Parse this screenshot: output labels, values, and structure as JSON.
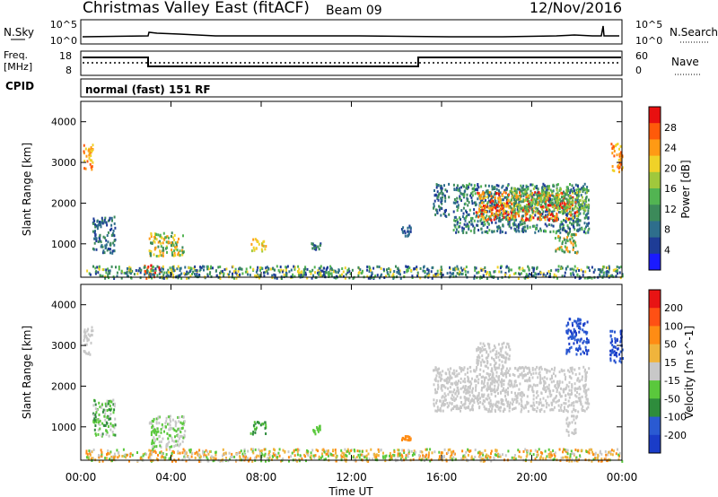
{
  "header": {
    "title": "Christmas Valley East (fitACF)",
    "beam": "Beam 09",
    "date": "12/Nov/2016"
  },
  "top_panels": {
    "nsky_label": "N.Sky",
    "nsky_ticks": [
      "10^5",
      "10^0"
    ],
    "nsearch_label": "N.Search",
    "nsearch_ticks": [
      "10^5",
      "10^0"
    ],
    "freq_label_1": "Freq.",
    "freq_label_2": "[MHz]",
    "freq_ticks": [
      "18",
      "8"
    ],
    "nave_label": "Nave",
    "nave_ticks": [
      "60",
      "0"
    ],
    "cpid_label": "CPID",
    "cpid_text": "normal (fast) 151 RF"
  },
  "chart_data": [
    {
      "type": "heatmap",
      "title": "",
      "xlabel": "",
      "ylabel": "Slant Range [km]",
      "colorbar_label": "Power [dB]",
      "x_range_hours": [
        0,
        24
      ],
      "y_range_km": [
        180,
        4500
      ],
      "yticks": [
        "1000",
        "2000",
        "3000",
        "4000"
      ],
      "colorbar_ticks": [
        "4",
        "8",
        "12",
        "16",
        "20",
        "24",
        "28"
      ],
      "colors": [
        "#1a1aff",
        "#1e3c96",
        "#2e6e8c",
        "#3c8a5a",
        "#52b452",
        "#a0c83c",
        "#f0d228",
        "#ff9a14",
        "#ff5a0a",
        "#e81010"
      ],
      "scatter_regions": [
        {
          "t": [
            0.1,
            0.5
          ],
          "r": [
            2800,
            3500
          ],
          "colors": [
            "#ff9a14",
            "#f0d228",
            "#ff5a0a"
          ]
        },
        {
          "t": [
            0.5,
            1.5
          ],
          "r": [
            800,
            1700
          ],
          "colors": [
            "#1e3c96",
            "#2e6e8c",
            "#3c8a5a"
          ]
        },
        {
          "t": [
            2.8,
            3.5
          ],
          "r": [
            180,
            500
          ],
          "colors": [
            "#e81010",
            "#ff5a0a"
          ]
        },
        {
          "t": [
            3.0,
            4.6
          ],
          "r": [
            700,
            1300
          ],
          "colors": [
            "#52b452",
            "#f0d228",
            "#ff9a14",
            "#3c8a5a"
          ]
        },
        {
          "t": [
            7.5,
            8.2
          ],
          "r": [
            850,
            1150
          ],
          "colors": [
            "#a0c83c",
            "#f0d228",
            "#ff9a14"
          ]
        },
        {
          "t": [
            10.2,
            10.6
          ],
          "r": [
            850,
            1050
          ],
          "colors": [
            "#3c8a5a",
            "#1e3c96"
          ]
        },
        {
          "t": [
            14.2,
            14.6
          ],
          "r": [
            1200,
            1500
          ],
          "colors": [
            "#1e3c96",
            "#2e6e8c"
          ]
        },
        {
          "t": [
            15.6,
            16.3
          ],
          "r": [
            1700,
            2500
          ],
          "colors": [
            "#1e3c96",
            "#2e6e8c",
            "#3c8a5a"
          ]
        },
        {
          "t": [
            16.5,
            22.5
          ],
          "r": [
            1300,
            2500
          ],
          "colors": [
            "#1e3c96",
            "#2e6e8c",
            "#3c8a5a",
            "#52b452"
          ]
        },
        {
          "t": [
            17.5,
            22.0
          ],
          "r": [
            1600,
            2300
          ],
          "colors": [
            "#e81010",
            "#ff5a0a",
            "#ff9a14",
            "#f0d228"
          ]
        },
        {
          "t": [
            19.0,
            22.5
          ],
          "r": [
            1800,
            2400
          ],
          "colors": [
            "#52b452",
            "#a0c83c",
            "#3c8a5a"
          ]
        },
        {
          "t": [
            21.0,
            22.0
          ],
          "r": [
            800,
            1300
          ],
          "colors": [
            "#3c8a5a",
            "#52b452",
            "#ff9a14"
          ]
        },
        {
          "t": [
            23.5,
            24.0
          ],
          "r": [
            2800,
            3500
          ],
          "colors": [
            "#ff9a14",
            "#ff5a0a",
            "#f0d228"
          ]
        },
        {
          "t": [
            0.2,
            24.0
          ],
          "r": [
            180,
            480
          ],
          "colors": [
            "#1e3c96",
            "#2e6e8c",
            "#3c8a5a",
            "#52b452",
            "#f0d228"
          ]
        }
      ]
    },
    {
      "type": "heatmap",
      "title": "",
      "xlabel": "Time UT",
      "ylabel": "Slant Range [km]",
      "colorbar_label": "Velocity [m s^-1]",
      "x_range_hours": [
        0,
        24
      ],
      "y_range_km": [
        180,
        4500
      ],
      "yticks": [
        "1000",
        "2000",
        "3000",
        "4000"
      ],
      "xticks": [
        "00:00",
        "04:00",
        "08:00",
        "12:00",
        "16:00",
        "20:00",
        "00:00"
      ],
      "colorbar_ticks": [
        "200",
        "100",
        "50",
        "15",
        "-15",
        "-50",
        "-100",
        "-200"
      ],
      "colors": [
        "#1a3cc8",
        "#2a5ad2",
        "#2e8c3c",
        "#5ac83c",
        "#c8c8c8",
        "#f0b43c",
        "#ff8c14",
        "#ff5014",
        "#e81414"
      ],
      "scatter_regions": [
        {
          "t": [
            0.1,
            0.5
          ],
          "r": [
            2800,
            3500
          ],
          "colors": [
            "#c8c8c8"
          ]
        },
        {
          "t": [
            0.5,
            1.5
          ],
          "r": [
            800,
            1700
          ],
          "colors": [
            "#5ac83c",
            "#2e8c3c",
            "#c8c8c8"
          ]
        },
        {
          "t": [
            3.0,
            4.6
          ],
          "r": [
            500,
            1300
          ],
          "colors": [
            "#c8c8c8",
            "#5ac83c"
          ]
        },
        {
          "t": [
            7.5,
            8.2
          ],
          "r": [
            850,
            1150
          ],
          "colors": [
            "#5ac83c",
            "#2e8c3c"
          ]
        },
        {
          "t": [
            10.2,
            10.6
          ],
          "r": [
            850,
            1050
          ],
          "colors": [
            "#5ac83c"
          ]
        },
        {
          "t": [
            14.2,
            14.6
          ],
          "r": [
            700,
            800
          ],
          "colors": [
            "#ff8c14"
          ]
        },
        {
          "t": [
            15.6,
            22.5
          ],
          "r": [
            1400,
            2500
          ],
          "colors": [
            "#c8c8c8"
          ]
        },
        {
          "t": [
            17.5,
            19.0
          ],
          "r": [
            2500,
            3100
          ],
          "colors": [
            "#c8c8c8"
          ]
        },
        {
          "t": [
            21.5,
            22.0
          ],
          "r": [
            800,
            1300
          ],
          "colors": [
            "#c8c8c8"
          ]
        },
        {
          "t": [
            21.5,
            22.5
          ],
          "r": [
            2800,
            3700
          ],
          "colors": [
            "#1a3cc8",
            "#2a5ad2"
          ]
        },
        {
          "t": [
            23.4,
            24.0
          ],
          "r": [
            2600,
            3400
          ],
          "colors": [
            "#1a3cc8",
            "#2a5ad2"
          ]
        },
        {
          "t": [
            0.2,
            24.0
          ],
          "r": [
            180,
            480
          ],
          "colors": [
            "#f0b43c",
            "#ff8c14",
            "#c8c8c8",
            "#5ac83c"
          ]
        }
      ]
    }
  ]
}
